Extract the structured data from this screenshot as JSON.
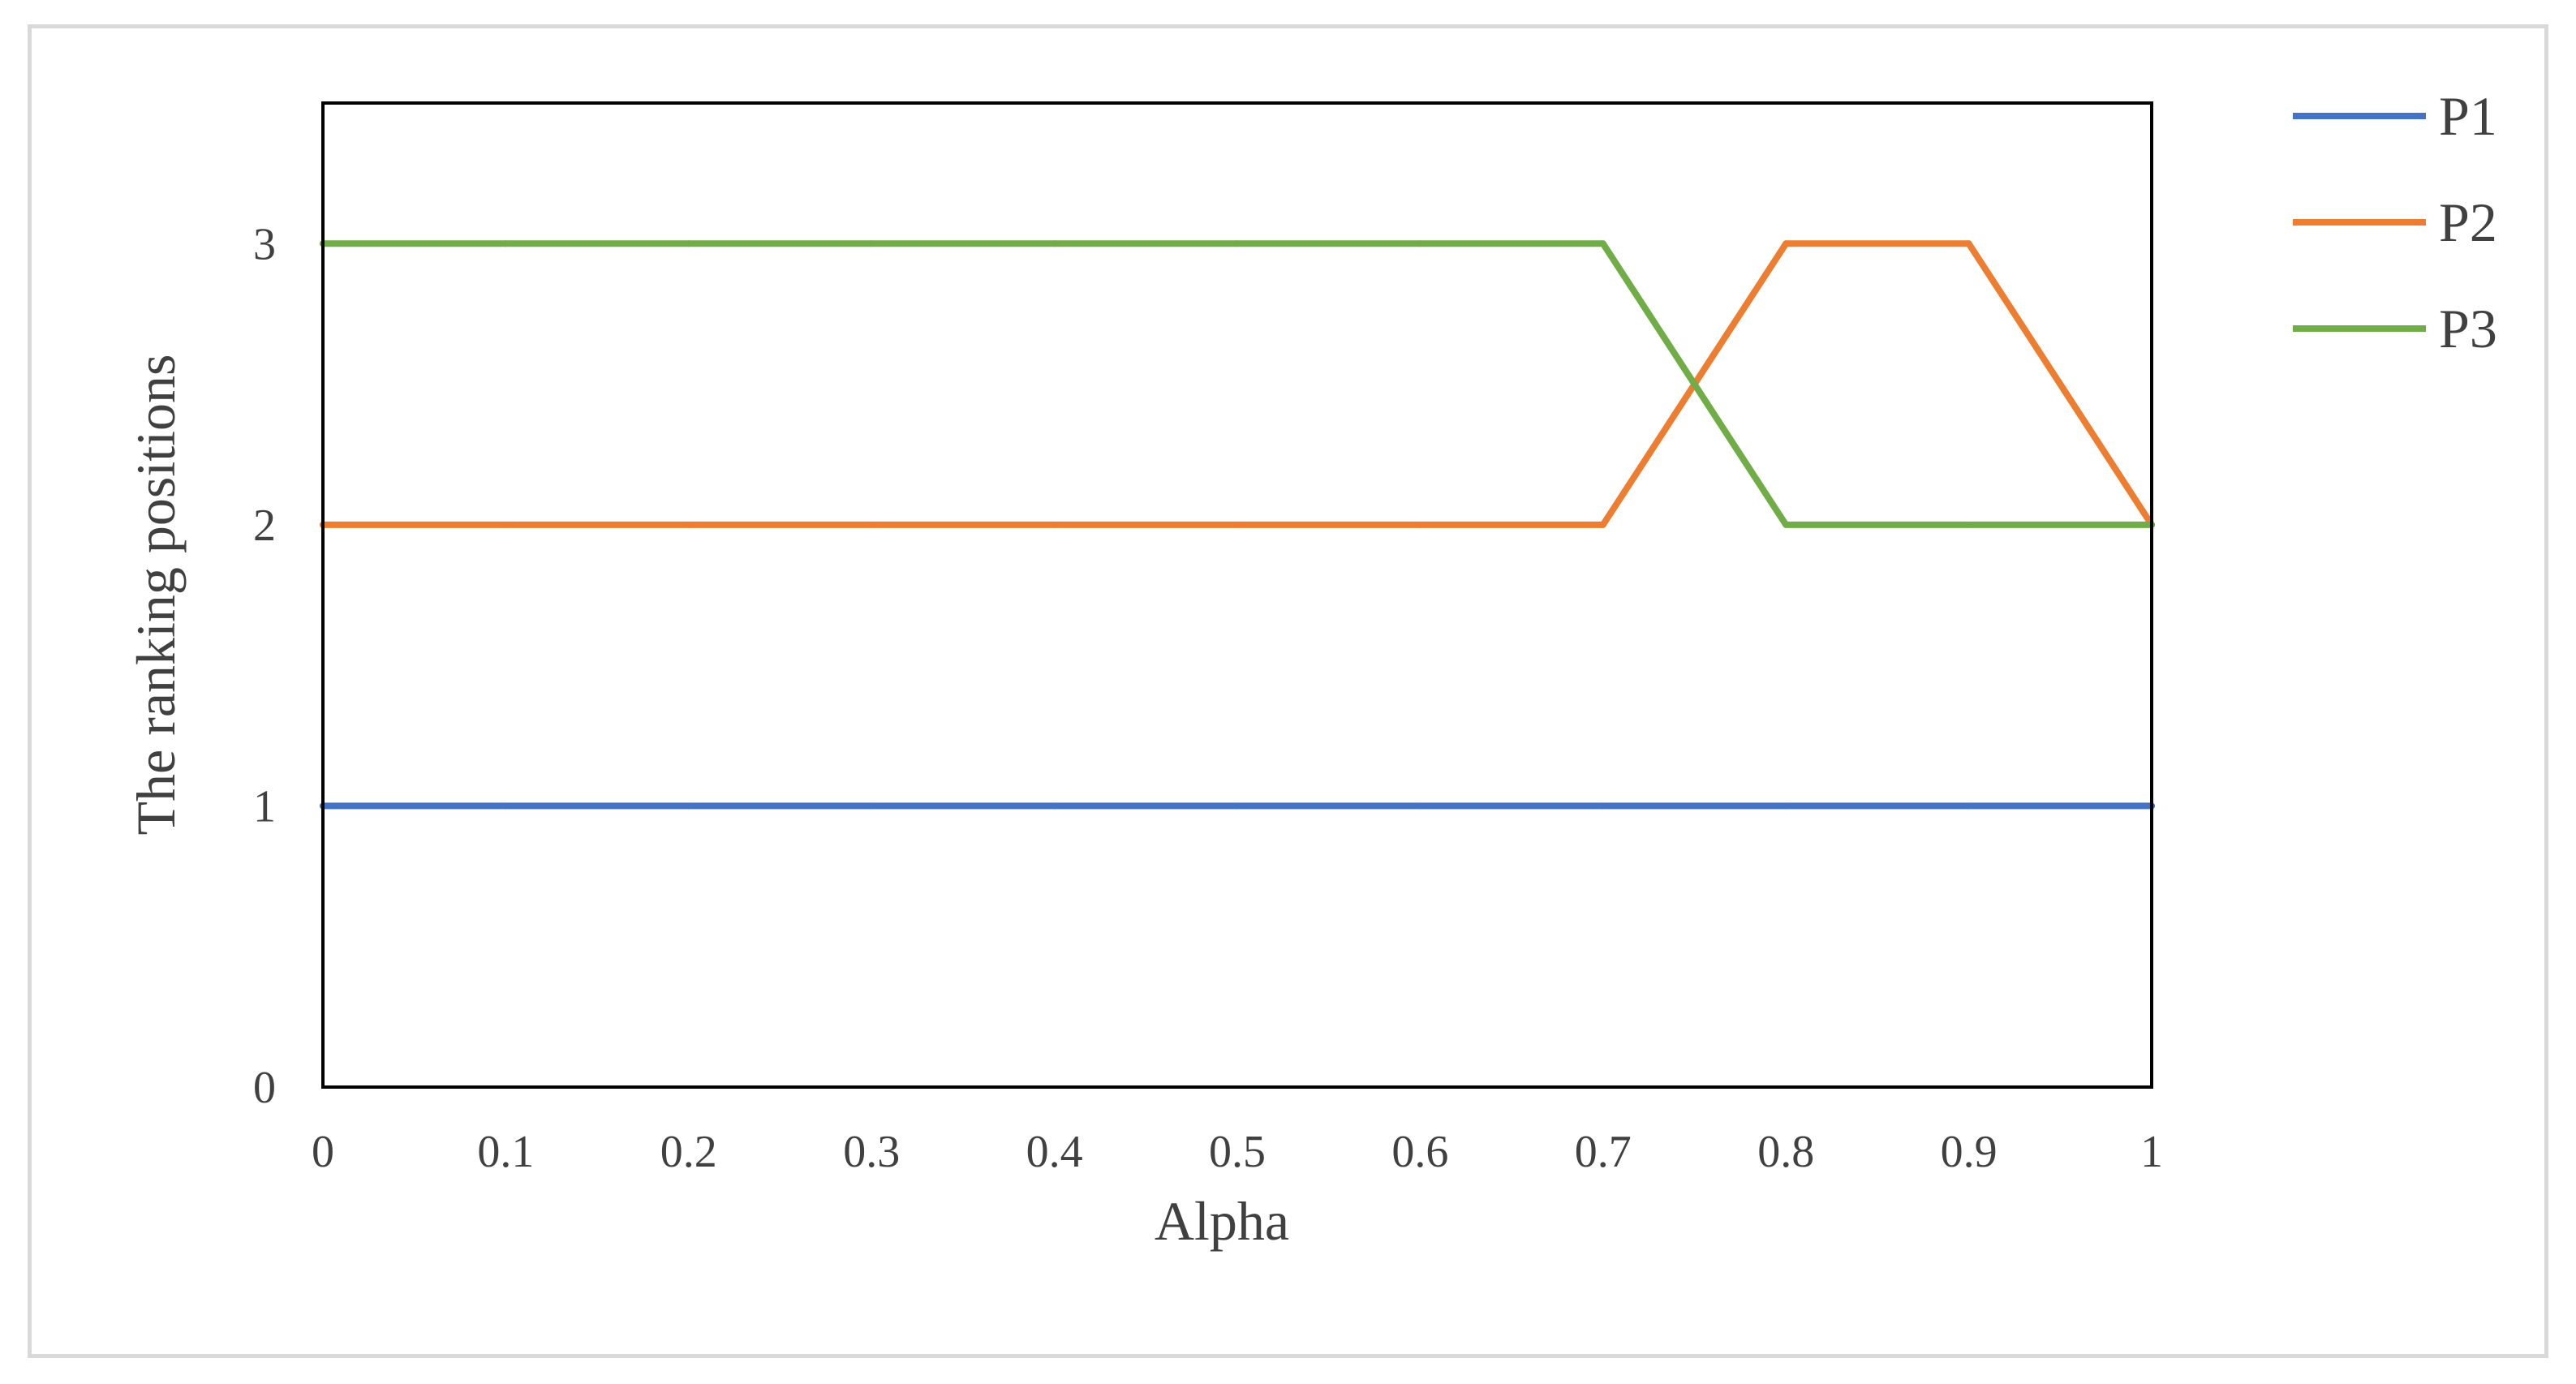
{
  "chart_data": {
    "type": "line",
    "title": "",
    "xlabel": "Alpha",
    "ylabel": "The ranking positions",
    "x": [
      0,
      0.1,
      0.2,
      0.3,
      0.4,
      0.5,
      0.6,
      0.7,
      0.8,
      0.9,
      1
    ],
    "x_tick_labels": [
      "0",
      "0.1",
      "0.2",
      "0.3",
      "0.4",
      "0.5",
      "0.6",
      "0.7",
      "0.8",
      "0.9",
      "1"
    ],
    "y_tick_labels": [
      "0",
      "1",
      "2",
      "3"
    ],
    "xlim": [
      0,
      1
    ],
    "ylim": [
      0,
      3.5
    ],
    "grid": false,
    "legend_position": "right",
    "series": [
      {
        "name": "P1",
        "color": "#4472c4",
        "values": [
          1,
          1,
          1,
          1,
          1,
          1,
          1,
          1,
          1,
          1,
          1
        ]
      },
      {
        "name": "P2",
        "color": "#ed7d31",
        "values": [
          2,
          2,
          2,
          2,
          2,
          2,
          2,
          2,
          3,
          3,
          2
        ]
      },
      {
        "name": "P3",
        "color": "#70ad47",
        "values": [
          3,
          3,
          3,
          3,
          3,
          3,
          3,
          3,
          2,
          2,
          2
        ]
      }
    ]
  }
}
